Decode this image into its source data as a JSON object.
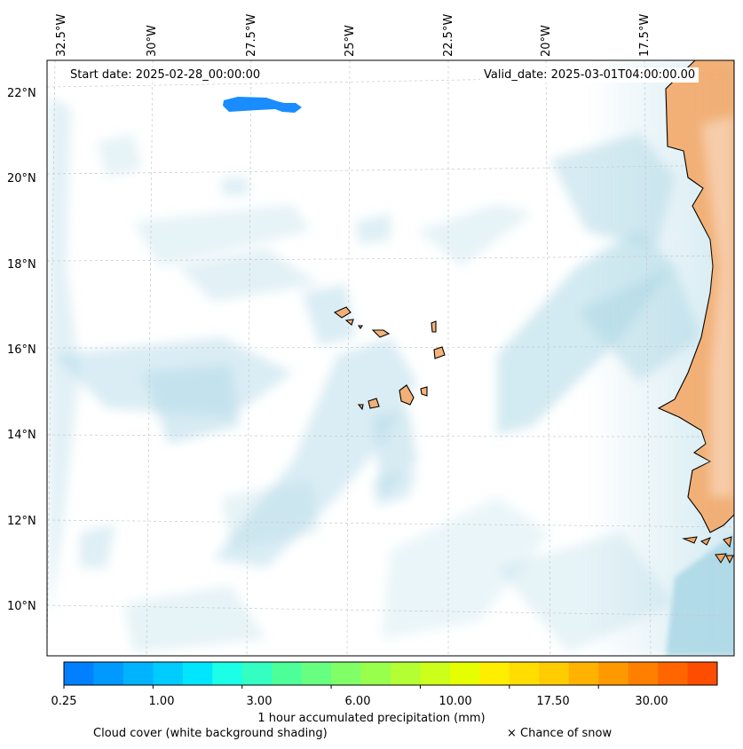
{
  "map": {
    "start_date": "Start date: 2025-02-28_00:00:00",
    "valid_date": "Valid_date: 2025-03-01T04:00:00.00",
    "longitude_labels": [
      "32.5°W",
      "30°W",
      "27.5°W",
      "25°W",
      "22.5°W",
      "20°W",
      "17.5°W"
    ],
    "latitude_labels": [
      "22°N",
      "20°N",
      "18°N",
      "16°N",
      "14°N",
      "12°N",
      "10°N"
    ]
  },
  "colorbar": {
    "title": "1 hour accumulated precipitation (mm)",
    "tick_labels": [
      "0.25",
      "1.00",
      "3.00",
      "6.00",
      "10.00",
      "17.50",
      "30.00"
    ],
    "colors": [
      "#0080ff",
      "#0099ff",
      "#00b3ff",
      "#00ccff",
      "#00e6ff",
      "#1affe6",
      "#33ffc2",
      "#4dff99",
      "#66ff80",
      "#80ff66",
      "#99ff4d",
      "#b3ff33",
      "#ccff1a",
      "#e6ff00",
      "#ffee00",
      "#ffdd00",
      "#ffcc00",
      "#ffb300",
      "#ff9900",
      "#ff8000",
      "#ff6600",
      "#ff4d00"
    ]
  },
  "legend": {
    "cloud_cover": "Cloud cover (white background shading)",
    "snow": "× Chance of snow"
  },
  "colors": {
    "land": "#f4a460",
    "cloud": "#add8e6",
    "precip": "#0080ff"
  }
}
